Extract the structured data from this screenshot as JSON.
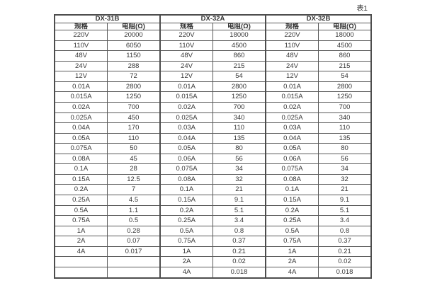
{
  "table_label": "表1",
  "columns": {
    "spec": "规格",
    "resistance": "电阻(Ω)"
  },
  "groups": [
    {
      "name": "DX-31B",
      "rows": [
        [
          "220V",
          "20000"
        ],
        [
          "110V",
          "6050"
        ],
        [
          "48V",
          "1150"
        ],
        [
          "24V",
          "288"
        ],
        [
          "12V",
          "72"
        ],
        [
          "0.01A",
          "2800"
        ],
        [
          "0.015A",
          "1250"
        ],
        [
          "0.02A",
          "700"
        ],
        [
          "0.025A",
          "450"
        ],
        [
          "0.04A",
          "170"
        ],
        [
          "0.05A",
          "110"
        ],
        [
          "0.075A",
          "50"
        ],
        [
          "0.08A",
          "45"
        ],
        [
          "0.1A",
          "28"
        ],
        [
          "0.15A",
          "12.5"
        ],
        [
          "0.2A",
          "7"
        ],
        [
          "0.25A",
          "4.5"
        ],
        [
          "0.5A",
          "1.1"
        ],
        [
          "0.75A",
          "0.5"
        ],
        [
          "1A",
          "0.28"
        ],
        [
          "2A",
          "0.07"
        ],
        [
          "4A",
          "0.017"
        ],
        [
          "",
          ""
        ],
        [
          "",
          ""
        ]
      ]
    },
    {
      "name": "DX-32A",
      "rows": [
        [
          "220V",
          "18000"
        ],
        [
          "110V",
          "4500"
        ],
        [
          "48V",
          "860"
        ],
        [
          "24V",
          "215"
        ],
        [
          "12V",
          "54"
        ],
        [
          "0.01A",
          "2800"
        ],
        [
          "0.015A",
          "1250"
        ],
        [
          "0.02A",
          "700"
        ],
        [
          "0.025A",
          "340"
        ],
        [
          "0.03A",
          "110"
        ],
        [
          "0.04A",
          "135"
        ],
        [
          "0.05A",
          "80"
        ],
        [
          "0.06A",
          "56"
        ],
        [
          "0.075A",
          "34"
        ],
        [
          "0.08A",
          "32"
        ],
        [
          "0.1A",
          "21"
        ],
        [
          "0.15A",
          "9.1"
        ],
        [
          "0.2A",
          "5.1"
        ],
        [
          "0.25A",
          "3.4"
        ],
        [
          "0.5A",
          "0.8"
        ],
        [
          "0.75A",
          "0.37"
        ],
        [
          "1A",
          "0.21"
        ],
        [
          "2A",
          "0.02"
        ],
        [
          "4A",
          "0.018"
        ]
      ]
    },
    {
      "name": "DX-32B",
      "rows": [
        [
          "220V",
          "18000"
        ],
        [
          "110V",
          "4500"
        ],
        [
          "48V",
          "860"
        ],
        [
          "24V",
          "215"
        ],
        [
          "12V",
          "54"
        ],
        [
          "0.01A",
          "2800"
        ],
        [
          "0.015A",
          "1250"
        ],
        [
          "0.02A",
          "700"
        ],
        [
          "0.025A",
          "340"
        ],
        [
          "0.03A",
          "110"
        ],
        [
          "0.04A",
          "135"
        ],
        [
          "0.05A",
          "80"
        ],
        [
          "0.06A",
          "56"
        ],
        [
          "0.075A",
          "34"
        ],
        [
          "0.08A",
          "32"
        ],
        [
          "0.1A",
          "21"
        ],
        [
          "0.15A",
          "9.1"
        ],
        [
          "0.2A",
          "5.1"
        ],
        [
          "0.25A",
          "3.4"
        ],
        [
          "0.5A",
          "0.8"
        ],
        [
          "0.75A",
          "0.37"
        ],
        [
          "1A",
          "0.21"
        ],
        [
          "2A",
          "0.02"
        ],
        [
          "4A",
          "0.018"
        ]
      ]
    }
  ],
  "colors": {
    "border": "#5a5a5a",
    "text": "#363636",
    "background": "#ffffff"
  }
}
